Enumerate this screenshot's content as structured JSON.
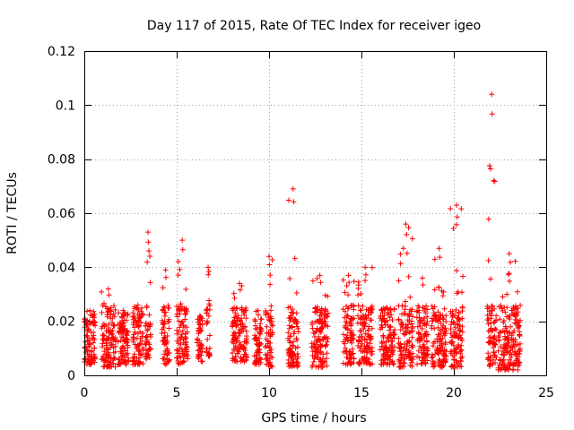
{
  "chart_data": {
    "type": "scatter",
    "title": "Day 117 of 2015, Rate Of TEC Index for receiver igeo",
    "xlabel": "GPS time / hours",
    "ylabel": "ROTI / TECUs",
    "xlim": [
      0,
      25
    ],
    "ylim": [
      0,
      0.12
    ],
    "xticks": [
      0,
      5,
      10,
      15,
      20,
      25
    ],
    "xtick_labels": [
      "0",
      "5",
      "10",
      "15",
      "20",
      "25"
    ],
    "yticks": [
      0,
      0.02,
      0.04,
      0.06,
      0.08,
      0.1,
      0.12
    ],
    "ytick_labels": [
      "0",
      "0.02",
      "0.04",
      "0.06",
      "0.08",
      "0.1",
      "0.12"
    ],
    "grid": true,
    "marker": "+",
    "color": "#ff0000",
    "clusters": [
      {
        "x": [
          0.0,
          0.6
        ],
        "y": [
          0.004,
          0.024
        ]
      },
      {
        "x": [
          0.9,
          1.7
        ],
        "y": [
          0.003,
          0.032
        ]
      },
      {
        "x": [
          1.8,
          2.4
        ],
        "y": [
          0.004,
          0.024
        ]
      },
      {
        "x": [
          2.6,
          3.2
        ],
        "y": [
          0.004,
          0.026
        ]
      },
      {
        "x": [
          3.3,
          3.6
        ],
        "y": [
          0.006,
          0.053
        ]
      },
      {
        "x": [
          4.2,
          4.6
        ],
        "y": [
          0.004,
          0.039
        ]
      },
      {
        "x": [
          5.0,
          5.6
        ],
        "y": [
          0.004,
          0.05
        ]
      },
      {
        "x": [
          6.1,
          6.4
        ],
        "y": [
          0.005,
          0.022
        ]
      },
      {
        "x": [
          6.6,
          6.8
        ],
        "y": [
          0.007,
          0.04
        ]
      },
      {
        "x": [
          8.0,
          8.8
        ],
        "y": [
          0.005,
          0.034
        ]
      },
      {
        "x": [
          9.2,
          9.6
        ],
        "y": [
          0.004,
          0.024
        ]
      },
      {
        "x": [
          9.8,
          10.2
        ],
        "y": [
          0.003,
          0.044
        ]
      },
      {
        "x": [
          11.0,
          11.6
        ],
        "y": [
          0.003,
          0.069
        ]
      },
      {
        "x": [
          12.3,
          13.2
        ],
        "y": [
          0.003,
          0.037
        ]
      },
      {
        "x": [
          14.0,
          14.6
        ],
        "y": [
          0.004,
          0.037
        ]
      },
      {
        "x": [
          14.8,
          15.6
        ],
        "y": [
          0.004,
          0.04
        ]
      },
      {
        "x": [
          16.0,
          16.8
        ],
        "y": [
          0.004,
          0.025
        ]
      },
      {
        "x": [
          17.0,
          17.8
        ],
        "y": [
          0.003,
          0.056
        ]
      },
      {
        "x": [
          18.0,
          18.6
        ],
        "y": [
          0.004,
          0.036
        ]
      },
      {
        "x": [
          18.8,
          19.6
        ],
        "y": [
          0.003,
          0.047
        ]
      },
      {
        "x": [
          19.8,
          20.5
        ],
        "y": [
          0.003,
          0.063
        ]
      },
      {
        "x": [
          21.8,
          22.3
        ],
        "y": [
          0.003,
          0.104
        ]
      },
      {
        "x": [
          22.4,
          23.6
        ],
        "y": [
          0.002,
          0.045
        ]
      }
    ]
  }
}
